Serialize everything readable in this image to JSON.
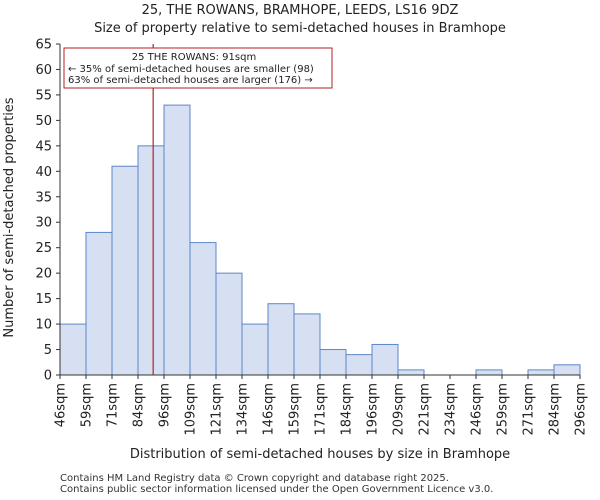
{
  "chart_data": {
    "type": "bar",
    "title": "25, THE ROWANS, BRAMHOPE, LEEDS, LS16 9DZ",
    "subtitle": "Size of property relative to semi-detached houses in Bramhope",
    "xlabel": "Distribution of semi-detached houses by size in Bramhope",
    "ylabel": "Number of semi-detached properties",
    "ylim": [
      0,
      65
    ],
    "yticks": [
      0,
      5,
      10,
      15,
      20,
      25,
      30,
      35,
      40,
      45,
      50,
      55,
      60,
      65
    ],
    "bin_edges": [
      46,
      59,
      71,
      84,
      96,
      109,
      121,
      134,
      146,
      159,
      171,
      184,
      196,
      209,
      221,
      234,
      246,
      259,
      271,
      284,
      296
    ],
    "bin_labels": [
      "46sqm",
      "59sqm",
      "71sqm",
      "84sqm",
      "96sqm",
      "109sqm",
      "121sqm",
      "134sqm",
      "146sqm",
      "159sqm",
      "171sqm",
      "184sqm",
      "196sqm",
      "209sqm",
      "221sqm",
      "234sqm",
      "246sqm",
      "259sqm",
      "271sqm",
      "284sqm",
      "296sqm"
    ],
    "values": [
      10,
      28,
      41,
      45,
      53,
      26,
      20,
      10,
      14,
      12,
      5,
      4,
      6,
      1,
      0,
      0,
      1,
      0,
      1,
      2
    ],
    "marker_value": 91,
    "annotation": {
      "line1": "25 THE ROWANS: 91sqm",
      "line2": "← 35% of semi-detached houses are smaller (98)",
      "line3": "63% of semi-detached houses are larger (176) →"
    },
    "colors": {
      "bar_fill": "#d6e0f2",
      "bar_edge": "#5b86c9",
      "marker": "#b22222",
      "axis": "#333333"
    }
  },
  "footer": {
    "line1": "Contains HM Land Registry data © Crown copyright and database right 2025.",
    "line2": "Contains public sector information licensed under the Open Government Licence v3.0."
  }
}
